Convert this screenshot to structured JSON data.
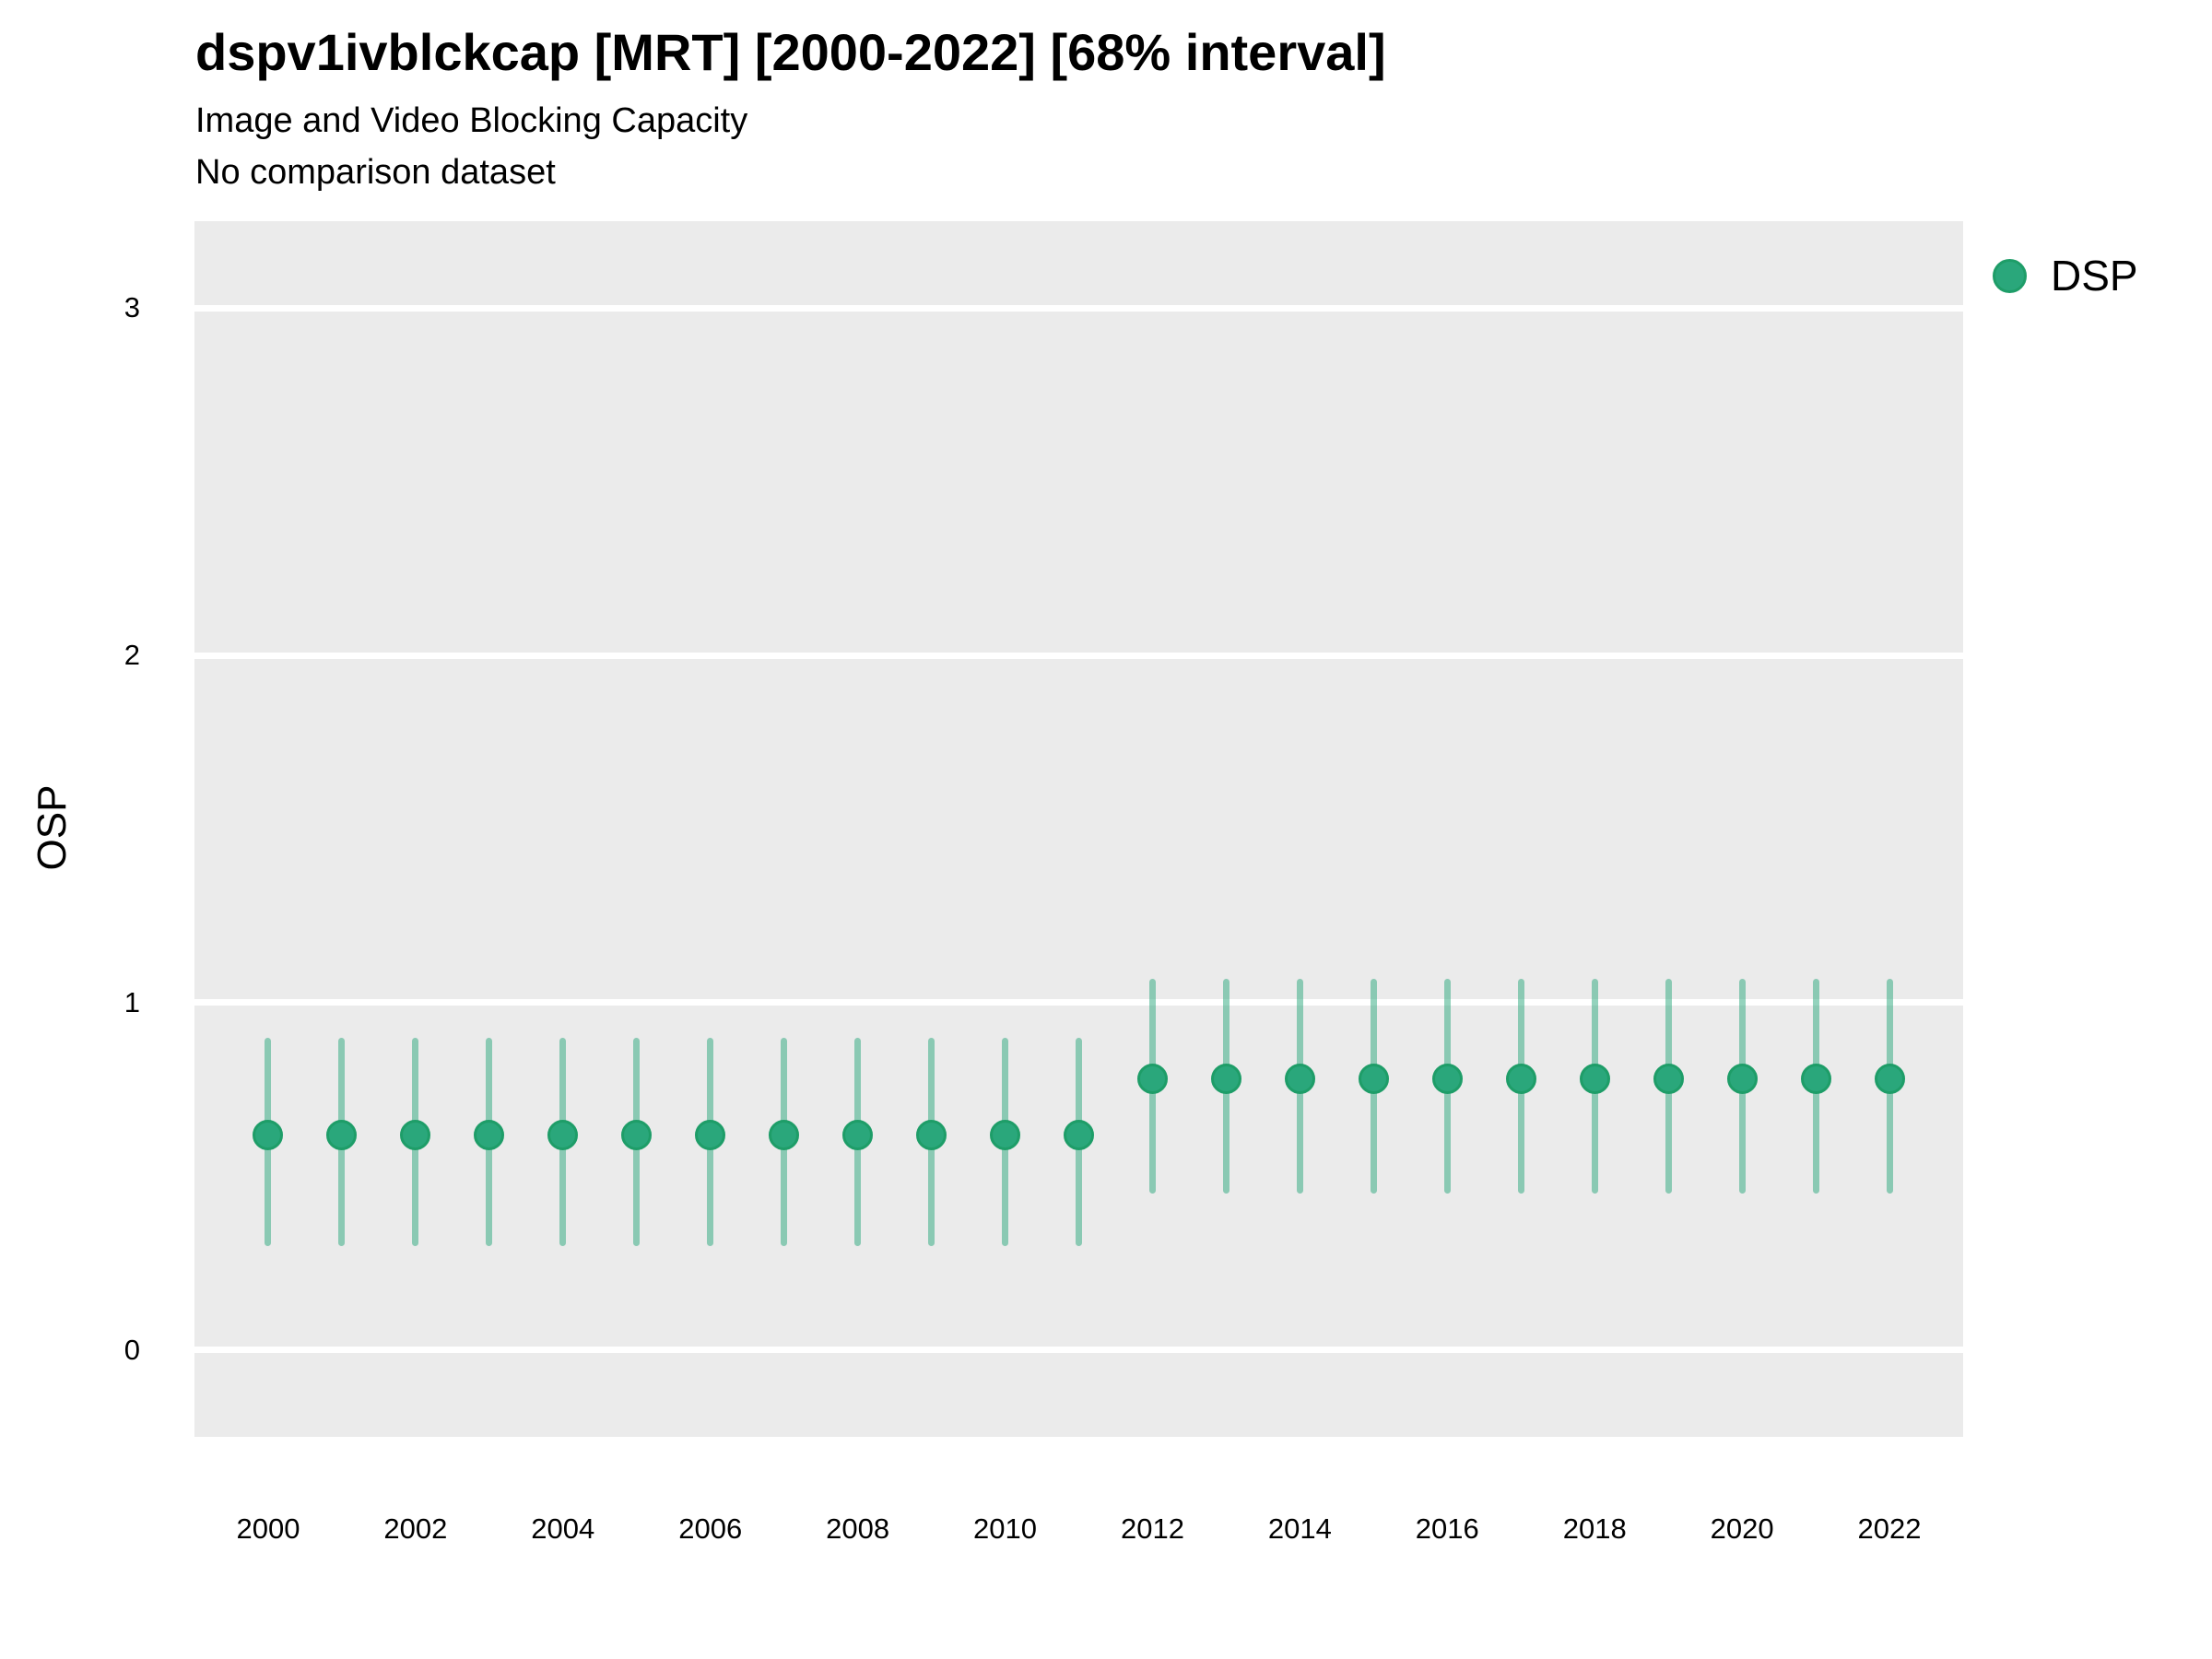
{
  "colors": {
    "marker_fill": "#2AA77B",
    "marker_stroke": "#1E9D68",
    "interval_bar": "rgba(42, 167, 123, 0.5)",
    "panel_background": "#EBEBEB",
    "gridline": "#FFFFFF",
    "text": "#000000"
  },
  "chart_data": {
    "type": "pointrange",
    "title": "dspv1ivblckcap [MRT] [2000-2022] [68% interval]",
    "subtitle": "Image and Video Blocking Capacity",
    "note": "No comparison dataset",
    "interval": "68%",
    "xlabel": "",
    "ylabel": "OSP",
    "ylim": [
      -0.25,
      3.25
    ],
    "y_ticks": [
      0,
      1,
      2,
      3
    ],
    "x_tick_years": [
      2000,
      2002,
      2004,
      2006,
      2008,
      2010,
      2012,
      2014,
      2016,
      2018,
      2020,
      2022
    ],
    "grid": "horizontal-white-on-grey",
    "legend": {
      "position": "right",
      "entries": [
        "DSP"
      ]
    },
    "series_name": "DSP",
    "points": [
      {
        "year": 2000,
        "value": 0.62,
        "lower": 0.3,
        "upper": 0.9
      },
      {
        "year": 2001,
        "value": 0.62,
        "lower": 0.3,
        "upper": 0.9
      },
      {
        "year": 2002,
        "value": 0.62,
        "lower": 0.3,
        "upper": 0.9
      },
      {
        "year": 2003,
        "value": 0.62,
        "lower": 0.3,
        "upper": 0.9
      },
      {
        "year": 2004,
        "value": 0.62,
        "lower": 0.3,
        "upper": 0.9
      },
      {
        "year": 2005,
        "value": 0.62,
        "lower": 0.3,
        "upper": 0.9
      },
      {
        "year": 2006,
        "value": 0.62,
        "lower": 0.3,
        "upper": 0.9
      },
      {
        "year": 2007,
        "value": 0.62,
        "lower": 0.3,
        "upper": 0.9
      },
      {
        "year": 2008,
        "value": 0.62,
        "lower": 0.3,
        "upper": 0.9
      },
      {
        "year": 2009,
        "value": 0.62,
        "lower": 0.3,
        "upper": 0.9
      },
      {
        "year": 2010,
        "value": 0.62,
        "lower": 0.3,
        "upper": 0.9
      },
      {
        "year": 2011,
        "value": 0.62,
        "lower": 0.3,
        "upper": 0.9
      },
      {
        "year": 2012,
        "value": 0.78,
        "lower": 0.45,
        "upper": 1.07
      },
      {
        "year": 2013,
        "value": 0.78,
        "lower": 0.45,
        "upper": 1.07
      },
      {
        "year": 2014,
        "value": 0.78,
        "lower": 0.45,
        "upper": 1.07
      },
      {
        "year": 2015,
        "value": 0.78,
        "lower": 0.45,
        "upper": 1.07
      },
      {
        "year": 2016,
        "value": 0.78,
        "lower": 0.45,
        "upper": 1.07
      },
      {
        "year": 2017,
        "value": 0.78,
        "lower": 0.45,
        "upper": 1.07
      },
      {
        "year": 2018,
        "value": 0.78,
        "lower": 0.45,
        "upper": 1.07
      },
      {
        "year": 2019,
        "value": 0.78,
        "lower": 0.45,
        "upper": 1.07
      },
      {
        "year": 2020,
        "value": 0.78,
        "lower": 0.45,
        "upper": 1.07
      },
      {
        "year": 2021,
        "value": 0.78,
        "lower": 0.45,
        "upper": 1.07
      },
      {
        "year": 2022,
        "value": 0.78,
        "lower": 0.45,
        "upper": 1.07
      }
    ]
  }
}
